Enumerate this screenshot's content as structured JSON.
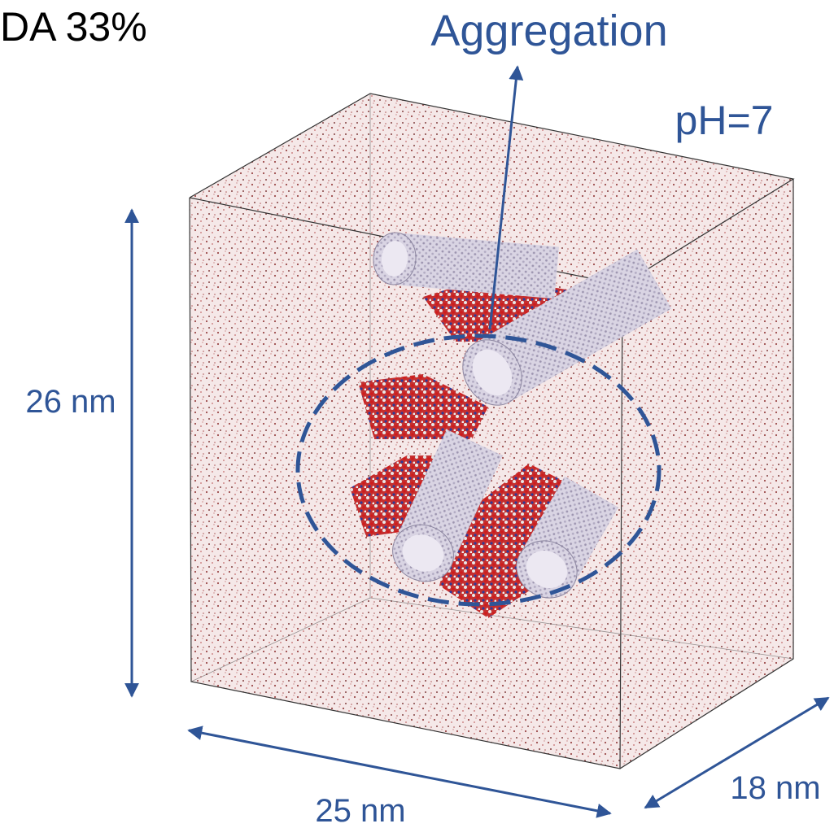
{
  "labels": {
    "composition": "DA 33%",
    "aggregation": "Aggregation",
    "ph": "pH=7",
    "height": "26 nm",
    "width": "25 nm",
    "depth": "18 nm"
  }
}
